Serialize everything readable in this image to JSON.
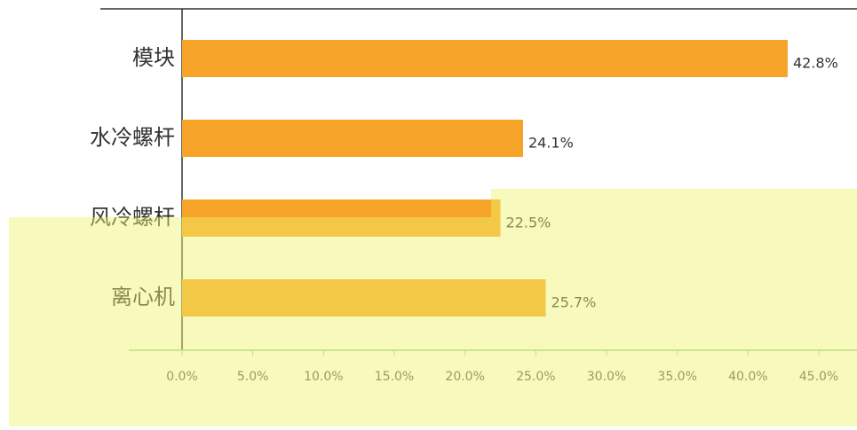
{
  "chart_data": {
    "type": "bar",
    "orientation": "horizontal",
    "categories": [
      "模块",
      "水冷螺杆",
      "风冷螺杆",
      "离心机"
    ],
    "values": [
      42.8,
      24.1,
      22.5,
      25.7
    ],
    "value_labels": [
      "42.8%",
      "24.1%",
      "22.5%",
      "25.7%"
    ],
    "color": "#f7a42b",
    "xlim": [
      0,
      45
    ],
    "xticks": [
      {
        "value": 0,
        "label": "0.0%"
      },
      {
        "value": 5,
        "label": "5.0%"
      },
      {
        "value": 10,
        "label": "10.0%"
      },
      {
        "value": 15,
        "label": "15.0%"
      },
      {
        "value": 20,
        "label": "20.0%"
      },
      {
        "value": 25,
        "label": "25.0%"
      },
      {
        "value": 30,
        "label": "30.0%"
      },
      {
        "value": 35,
        "label": "35.0%"
      },
      {
        "value": 40,
        "label": "40.0%"
      },
      {
        "value": 45,
        "label": "45.0%"
      }
    ],
    "grid": false
  }
}
